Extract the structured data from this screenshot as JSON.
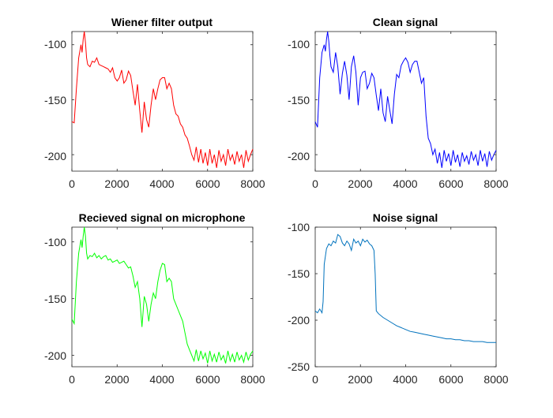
{
  "chart_data": [
    {
      "type": "line",
      "title": "Wiener filter output",
      "xlim": [
        0,
        8000
      ],
      "ylim": [
        -215,
        -88
      ],
      "xticks": [
        0,
        2000,
        4000,
        6000,
        8000
      ],
      "yticks": [
        -100,
        -150,
        -200
      ],
      "grid": false,
      "color": "#ff0000",
      "series": [
        {
          "x": [
            0,
            100,
            200,
            300,
            400,
            450,
            500,
            550,
            600,
            650,
            700,
            800,
            900,
            1000,
            1100,
            1200,
            1300,
            1400,
            1500,
            1600,
            1700,
            1800,
            1900,
            2000,
            2100,
            2200,
            2300,
            2400,
            2500,
            2600,
            2700,
            2800,
            2900,
            3000,
            3100,
            3200,
            3300,
            3400,
            3500,
            3600,
            3700,
            3800,
            3900,
            4000,
            4100,
            4200,
            4300,
            4400,
            4500,
            4600,
            4700,
            4800,
            4900,
            5000,
            5100,
            5200,
            5300,
            5400,
            5500,
            5600,
            5700,
            5800,
            5900,
            6000,
            6100,
            6200,
            6300,
            6400,
            6500,
            6600,
            6700,
            6800,
            6900,
            7000,
            7100,
            7200,
            7300,
            7400,
            7500,
            7600,
            7700,
            7800,
            7900,
            8000
          ],
          "y": [
            -170,
            -171,
            -140,
            -112,
            -100,
            -107,
            -95,
            -88,
            -98,
            -112,
            -118,
            -120,
            -115,
            -116,
            -112,
            -118,
            -119,
            -120,
            -121,
            -122,
            -125,
            -121,
            -130,
            -133,
            -130,
            -123,
            -135,
            -132,
            -124,
            -128,
            -142,
            -155,
            -136,
            -160,
            -180,
            -152,
            -168,
            -175,
            -155,
            -140,
            -150,
            -140,
            -132,
            -130,
            -130,
            -140,
            -135,
            -140,
            -155,
            -163,
            -165,
            -172,
            -175,
            -182,
            -185,
            -192,
            -200,
            -205,
            -193,
            -207,
            -195,
            -208,
            -198,
            -210,
            -195,
            -208,
            -200,
            -212,
            -196,
            -206,
            -200,
            -210,
            -195,
            -205,
            -200,
            -209,
            -197,
            -206,
            -200,
            -212,
            -196,
            -206,
            -200,
            -195
          ]
        }
      ]
    },
    {
      "type": "line",
      "title": "Clean signal",
      "xlim": [
        0,
        8000
      ],
      "ylim": [
        -215,
        -88
      ],
      "xticks": [
        0,
        2000,
        4000,
        6000,
        8000
      ],
      "yticks": [
        -100,
        -150,
        -200
      ],
      "grid": false,
      "color": "#0000ff",
      "series": [
        {
          "x": [
            0,
            100,
            200,
            300,
            400,
            450,
            500,
            550,
            600,
            650,
            700,
            800,
            900,
            1000,
            1100,
            1200,
            1300,
            1400,
            1500,
            1600,
            1700,
            1800,
            1900,
            2000,
            2100,
            2200,
            2300,
            2400,
            2500,
            2600,
            2700,
            2800,
            2900,
            3000,
            3100,
            3200,
            3300,
            3400,
            3500,
            3600,
            3700,
            3800,
            3900,
            4000,
            4100,
            4200,
            4300,
            4400,
            4500,
            4600,
            4700,
            4800,
            4900,
            5000,
            5100,
            5200,
            5300,
            5400,
            5500,
            5600,
            5700,
            5800,
            5900,
            6000,
            6100,
            6200,
            6300,
            6400,
            6500,
            6600,
            6700,
            6800,
            6900,
            7000,
            7100,
            7200,
            7300,
            7400,
            7500,
            7600,
            7700,
            7800,
            7900,
            8000
          ],
          "y": [
            -170,
            -175,
            -130,
            -107,
            -100,
            -106,
            -95,
            -88,
            -97,
            -110,
            -120,
            -125,
            -107,
            -120,
            -145,
            -126,
            -115,
            -128,
            -150,
            -120,
            -110,
            -125,
            -155,
            -130,
            -125,
            -124,
            -140,
            -135,
            -126,
            -130,
            -146,
            -160,
            -140,
            -162,
            -170,
            -147,
            -160,
            -172,
            -145,
            -127,
            -130,
            -119,
            -115,
            -112,
            -116,
            -125,
            -118,
            -115,
            -115,
            -125,
            -135,
            -130,
            -165,
            -185,
            -190,
            -200,
            -195,
            -208,
            -198,
            -212,
            -196,
            -206,
            -199,
            -210,
            -196,
            -207,
            -200,
            -211,
            -198,
            -206,
            -201,
            -209,
            -197,
            -205,
            -200,
            -210,
            -196,
            -206,
            -199,
            -211,
            -197,
            -205,
            -200,
            -196
          ]
        }
      ]
    },
    {
      "type": "line",
      "title": "Recieved signal on microphone",
      "xlim": [
        0,
        8000
      ],
      "ylim": [
        -210,
        -87
      ],
      "xticks": [
        0,
        2000,
        4000,
        6000,
        8000
      ],
      "yticks": [
        -100,
        -150,
        -200
      ],
      "grid": false,
      "color": "#00ff00",
      "series": [
        {
          "x": [
            0,
            100,
            200,
            300,
            400,
            450,
            500,
            550,
            600,
            650,
            700,
            800,
            900,
            1000,
            1100,
            1200,
            1300,
            1400,
            1500,
            1600,
            1700,
            1800,
            1900,
            2000,
            2100,
            2200,
            2300,
            2400,
            2500,
            2600,
            2700,
            2800,
            2900,
            3000,
            3100,
            3200,
            3300,
            3400,
            3500,
            3600,
            3700,
            3800,
            3900,
            4000,
            4100,
            4200,
            4300,
            4400,
            4500,
            4600,
            4700,
            4800,
            4900,
            5000,
            5100,
            5200,
            5300,
            5400,
            5500,
            5600,
            5700,
            5800,
            5900,
            6000,
            6100,
            6200,
            6300,
            6400,
            6500,
            6600,
            6700,
            6800,
            6900,
            7000,
            7100,
            7200,
            7300,
            7400,
            7500,
            7600,
            7700,
            7800,
            7900,
            8000
          ],
          "y": [
            -168,
            -172,
            -135,
            -110,
            -98,
            -105,
            -95,
            -87,
            -95,
            -110,
            -115,
            -112,
            -113,
            -110,
            -114,
            -112,
            -115,
            -113,
            -112,
            -116,
            -115,
            -118,
            -117,
            -116,
            -119,
            -118,
            -117,
            -120,
            -123,
            -122,
            -130,
            -140,
            -135,
            -150,
            -175,
            -148,
            -155,
            -170,
            -155,
            -145,
            -150,
            -135,
            -125,
            -119,
            -120,
            -135,
            -132,
            -135,
            -150,
            -155,
            -160,
            -165,
            -170,
            -180,
            -190,
            -195,
            -200,
            -205,
            -195,
            -205,
            -196,
            -203,
            -198,
            -207,
            -196,
            -205,
            -199,
            -206,
            -197,
            -204,
            -200,
            -207,
            -196,
            -205,
            -199,
            -206,
            -197,
            -204,
            -200,
            -206,
            -197,
            -204,
            -199,
            -196
          ]
        }
      ]
    },
    {
      "type": "line",
      "title": "Noise signal",
      "xlim": [
        0,
        8000
      ],
      "ylim": [
        -250,
        -100
      ],
      "xticks": [
        0,
        2000,
        4000,
        6000,
        8000
      ],
      "yticks": [
        -100,
        -150,
        -200,
        -250
      ],
      "grid": false,
      "color": "#0072bd",
      "series": [
        {
          "x": [
            0,
            100,
            200,
            300,
            350,
            400,
            500,
            600,
            700,
            800,
            900,
            1000,
            1100,
            1200,
            1300,
            1400,
            1500,
            1600,
            1700,
            1800,
            1900,
            2000,
            2100,
            2200,
            2300,
            2400,
            2500,
            2600,
            2650,
            2700,
            2800,
            3000,
            3200,
            3400,
            3600,
            3800,
            4000,
            4200,
            4400,
            4600,
            4800,
            5000,
            5200,
            5400,
            5600,
            5800,
            6000,
            6200,
            6400,
            6600,
            6800,
            7000,
            7200,
            7400,
            7600,
            7800,
            8000
          ],
          "y": [
            -190,
            -192,
            -188,
            -192,
            -180,
            -140,
            -123,
            -118,
            -120,
            -115,
            -117,
            -108,
            -110,
            -117,
            -120,
            -115,
            -118,
            -125,
            -113,
            -117,
            -115,
            -120,
            -113,
            -116,
            -114,
            -118,
            -120,
            -125,
            -150,
            -190,
            -193,
            -197,
            -200,
            -203,
            -206,
            -208,
            -210,
            -212,
            -213,
            -214,
            -215,
            -216,
            -217,
            -218,
            -219,
            -220,
            -220,
            -221,
            -221,
            -222,
            -222,
            -223,
            -223,
            -223,
            -224,
            -224,
            -224
          ]
        }
      ]
    }
  ]
}
